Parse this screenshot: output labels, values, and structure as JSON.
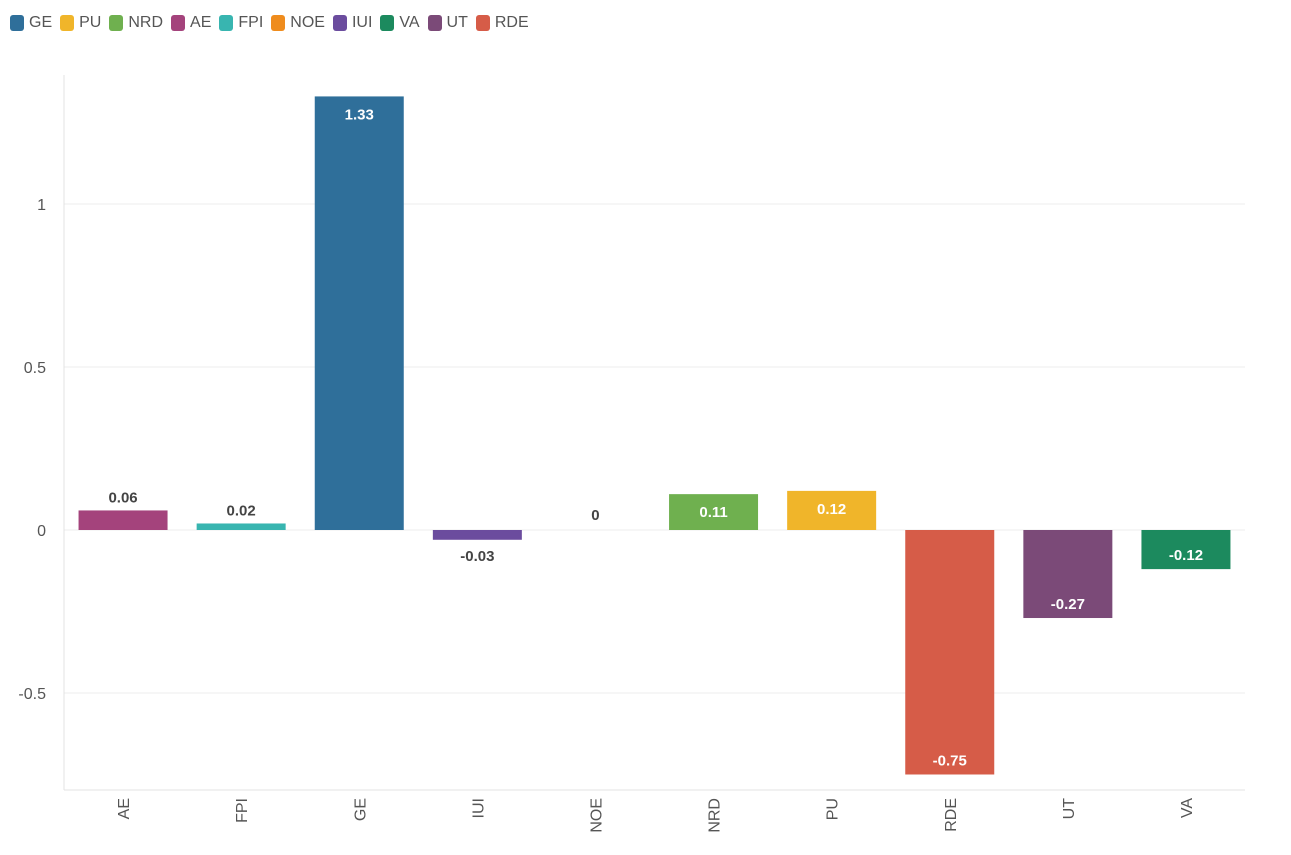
{
  "legend": {
    "placement": "top-left",
    "items": [
      {
        "label": "GE",
        "color": "#2f6f9a"
      },
      {
        "label": "PU",
        "color": "#f0b52a"
      },
      {
        "label": "NRD",
        "color": "#6fb04f"
      },
      {
        "label": "AE",
        "color": "#a4437c"
      },
      {
        "label": "FPI",
        "color": "#38b5b0"
      },
      {
        "label": "NOE",
        "color": "#ef8c1d"
      },
      {
        "label": "IUI",
        "color": "#6b4c9e"
      },
      {
        "label": "VA",
        "color": "#1c8a5e"
      },
      {
        "label": "UT",
        "color": "#7b4a78"
      },
      {
        "label": "RDE",
        "color": "#d65c48"
      }
    ]
  },
  "chart_data": {
    "type": "bar",
    "title": "",
    "xlabel": "",
    "ylabel": "",
    "categories": [
      "AE",
      "FPI",
      "GE",
      "IUI",
      "NOE",
      "NRD",
      "PU",
      "RDE",
      "UT",
      "VA"
    ],
    "values": [
      0.06,
      0.02,
      1.33,
      -0.03,
      0,
      0.11,
      0.12,
      -0.75,
      -0.27,
      -0.12
    ],
    "value_labels": [
      "0.06",
      "0.02",
      "1.33",
      "-0.03",
      "0",
      "0.11",
      "0.12",
      "-0.75",
      "-0.27",
      "-0.12"
    ],
    "colors": [
      "#a4437c",
      "#38b5b0",
      "#2f6f9a",
      "#6b4c9e",
      "#ef8c1d",
      "#6fb04f",
      "#f0b52a",
      "#d65c48",
      "#7b4a78",
      "#1c8a5e"
    ],
    "yticks": [
      -0.5,
      0,
      0.5,
      1
    ],
    "ytick_labels": [
      "-0.5",
      "0",
      "0.5",
      "1"
    ],
    "ylim": [
      -0.8,
      1.4
    ],
    "grid": true,
    "legend_placement": "top-left"
  }
}
